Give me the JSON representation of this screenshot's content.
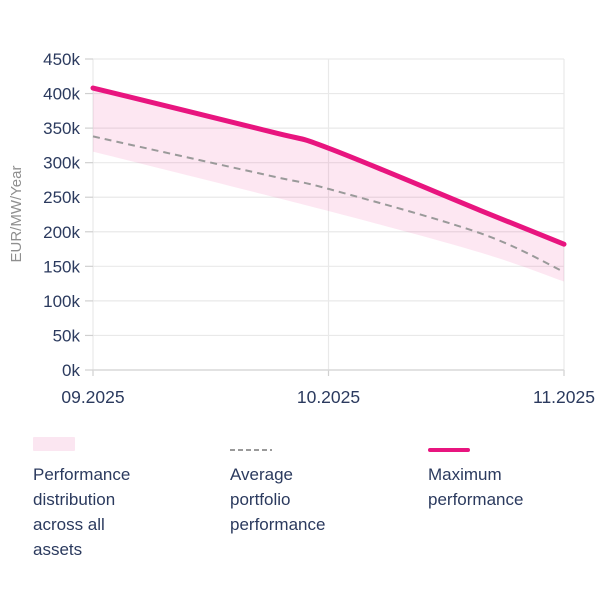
{
  "chart_data": {
    "type": "line",
    "title": "",
    "xlabel": "",
    "ylabel": "EUR/MW/Year",
    "x_categories": [
      "09.2025",
      "10.2025",
      "11.2025"
    ],
    "y_ticks": [
      "450k",
      "400k",
      "350k",
      "300k",
      "250k",
      "200k",
      "150k",
      "100k",
      "50k",
      "0k"
    ],
    "ylim_k": [
      0,
      450
    ],
    "grid": true,
    "legend_position": "bottom",
    "series": [
      {
        "name": "Performance distribution across all assets",
        "kind": "band",
        "color": "#e8157f",
        "fill_opacity": 0.1,
        "upper_values_k": [
          408,
          321,
          182
        ],
        "lower_values_k": [
          316,
          230,
          128
        ],
        "upper_curve": [
          [
            0,
            408
          ],
          [
            0.376,
            345
          ],
          [
            0.5,
            321
          ],
          [
            0.822,
            231
          ],
          [
            1,
            182
          ]
        ],
        "lower_curve": [
          [
            0,
            316
          ],
          [
            0.5,
            230
          ],
          [
            0.822,
            170
          ],
          [
            1,
            128
          ]
        ]
      },
      {
        "name": "Average portfolio performance",
        "kind": "dashed_line",
        "color": "#9a9a9a",
        "values_k": [
          338,
          262,
          142
        ],
        "curve": [
          [
            0,
            338
          ],
          [
            0.376,
            281
          ],
          [
            0.5,
            262
          ],
          [
            0.822,
            198
          ],
          [
            1,
            142
          ]
        ]
      },
      {
        "name": "Maximum performance",
        "kind": "line",
        "color": "#e8157f",
        "values_k": [
          408,
          321,
          182
        ],
        "curve": [
          [
            0,
            408
          ],
          [
            0.376,
            345
          ],
          [
            0.5,
            321
          ],
          [
            0.822,
            231
          ],
          [
            1,
            182
          ]
        ]
      }
    ]
  },
  "legend": {
    "items": [
      {
        "swatch": "area",
        "label": "Performance distribution across all assets",
        "lines": [
          "Performance",
          "distribution",
          "across all",
          "assets"
        ]
      },
      {
        "swatch": "dashed-line",
        "label": "Average portfolio performance",
        "lines": [
          "Average",
          "portfolio",
          "performance"
        ]
      },
      {
        "swatch": "line",
        "label": "Maximum performance",
        "lines": [
          "Maximum",
          "performance"
        ]
      }
    ]
  },
  "colors": {
    "accent_pink": "#e8157f",
    "band_fill": "#fbe6f1",
    "dashed_gray": "#9a9a9a",
    "text_navy": "#2b3a5e",
    "axis_label_gray": "#8f8f8f",
    "gridline": "#e9e9e9",
    "axis_line": "#d9d9d9",
    "tick": "#d0d0d0"
  }
}
